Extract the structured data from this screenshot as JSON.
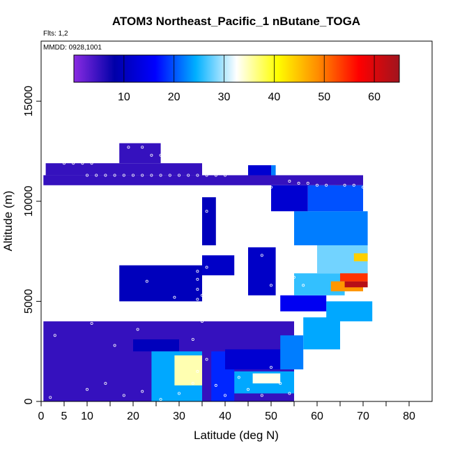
{
  "chart_data": {
    "type": "heatmap",
    "title": "ATOM3 Northeast_Pacific_1 nButane_TOGA",
    "annotations": [
      "Flts: 1,2",
      "MMDD: 0928,1001"
    ],
    "xlabel": "Latitude (deg N)",
    "ylabel": "Altitude (m)",
    "xlim": [
      0,
      85
    ],
    "ylim": [
      0,
      18000
    ],
    "x_ticks": [
      0,
      5,
      10,
      20,
      30,
      40,
      50,
      60,
      70,
      80
    ],
    "x_minor_ticks": [
      15,
      25,
      35,
      45,
      55,
      65,
      75
    ],
    "y_ticks": [
      0,
      5000,
      10000,
      15000
    ],
    "colorbar": {
      "range": [
        0,
        65
      ],
      "ticks": [
        10,
        20,
        30,
        40,
        50,
        60
      ],
      "colors": [
        "#8a2be2",
        "#0000a8",
        "#0000ff",
        "#00b0ff",
        "#ffffff",
        "#ffff00",
        "#ff8c00",
        "#ff0000",
        "#a0141e"
      ],
      "placement": "top-inside"
    },
    "background_value": 5,
    "cells": [
      {
        "lat": [
          0.5,
          55
        ],
        "alt": [
          0,
          4000
        ],
        "value": 5
      },
      {
        "lat": [
          20,
          30
        ],
        "alt": [
          2500,
          3100
        ],
        "value": 10
      },
      {
        "lat": [
          24,
          35
        ],
        "alt": [
          0,
          2500
        ],
        "value": 24
      },
      {
        "lat": [
          29,
          35
        ],
        "alt": [
          800,
          2300
        ],
        "value": 35
      },
      {
        "lat": [
          37,
          42
        ],
        "alt": [
          0,
          2500
        ],
        "value": 18
      },
      {
        "lat": [
          42,
          55
        ],
        "alt": [
          400,
          1500
        ],
        "value": 24
      },
      {
        "lat": [
          46,
          52
        ],
        "alt": [
          900,
          1400
        ],
        "value": 33
      },
      {
        "lat": [
          40,
          52
        ],
        "alt": [
          1600,
          2600
        ],
        "value": 12
      },
      {
        "lat": [
          52,
          57
        ],
        "alt": [
          1600,
          3300
        ],
        "value": 22
      },
      {
        "lat": [
          57,
          65
        ],
        "alt": [
          2600,
          4200
        ],
        "value": 24
      },
      {
        "lat": [
          62,
          72
        ],
        "alt": [
          4000,
          5000
        ],
        "value": 24
      },
      {
        "lat": [
          52,
          62
        ],
        "alt": [
          4500,
          5300
        ],
        "value": 15
      },
      {
        "lat": [
          55,
          66
        ],
        "alt": [
          5300,
          6400
        ],
        "value": 26
      },
      {
        "lat": [
          63,
          70
        ],
        "alt": [
          5500,
          6000
        ],
        "value": 48
      },
      {
        "lat": [
          66,
          71
        ],
        "alt": [
          5700,
          6000
        ],
        "value": 63
      },
      {
        "lat": [
          65,
          71
        ],
        "alt": [
          6000,
          6500
        ],
        "value": 54
      },
      {
        "lat": [
          60,
          71
        ],
        "alt": [
          6400,
          7800
        ],
        "value": 28
      },
      {
        "lat": [
          68,
          71
        ],
        "alt": [
          7000,
          7400
        ],
        "value": 44
      },
      {
        "lat": [
          55,
          71
        ],
        "alt": [
          7800,
          9500
        ],
        "value": 22
      },
      {
        "lat": [
          50,
          58
        ],
        "alt": [
          9500,
          10800
        ],
        "value": 12
      },
      {
        "lat": [
          58,
          70
        ],
        "alt": [
          9500,
          10800
        ],
        "value": 20
      },
      {
        "lat": [
          17,
          35
        ],
        "alt": [
          5000,
          6800
        ],
        "value": 10
      },
      {
        "lat": [
          35,
          42
        ],
        "alt": [
          6300,
          7300
        ],
        "value": 11
      },
      {
        "lat": [
          45,
          51
        ],
        "alt": [
          5300,
          7700
        ],
        "value": 11
      },
      {
        "lat": [
          35,
          38
        ],
        "alt": [
          7800,
          10200
        ],
        "value": 10
      },
      {
        "lat": [
          45,
          50
        ],
        "alt": [
          11000,
          11800
        ],
        "value": 12
      },
      {
        "lat": [
          50,
          51
        ],
        "alt": [
          11300,
          11800
        ],
        "value": 22
      },
      {
        "lat": [
          64,
          66
        ],
        "alt": [
          10800,
          11200
        ],
        "value": 44
      },
      {
        "lat": [
          0.5,
          70
        ],
        "alt": [
          10800,
          11300
        ],
        "value": 5
      },
      {
        "lat": [
          1,
          35
        ],
        "alt": [
          11300,
          11900
        ],
        "value": 5
      },
      {
        "lat": [
          17,
          26
        ],
        "alt": [
          11900,
          12900
        ],
        "value": 5
      }
    ],
    "sample_points": [
      [
        2,
        200
      ],
      [
        10,
        600
      ],
      [
        14,
        900
      ],
      [
        18,
        300
      ],
      [
        22,
        500
      ],
      [
        26,
        100
      ],
      [
        30,
        400
      ],
      [
        33,
        900
      ],
      [
        34,
        1500
      ],
      [
        36,
        2100
      ],
      [
        38,
        800
      ],
      [
        40,
        300
      ],
      [
        43,
        1200
      ],
      [
        45,
        600
      ],
      [
        48,
        300
      ],
      [
        50,
        1700
      ],
      [
        52,
        900
      ],
      [
        54,
        400
      ],
      [
        3,
        3300
      ],
      [
        7,
        4500
      ],
      [
        11,
        3900
      ],
      [
        16,
        2800
      ],
      [
        21,
        3600
      ],
      [
        25,
        4200
      ],
      [
        29,
        5200
      ],
      [
        33,
        3100
      ],
      [
        35,
        4000
      ],
      [
        35,
        4700
      ],
      [
        35,
        5300
      ],
      [
        38,
        4300
      ],
      [
        42,
        5400
      ],
      [
        46,
        4900
      ],
      [
        50,
        5800
      ],
      [
        55,
        6200
      ],
      [
        60,
        4300
      ],
      [
        4,
        6300
      ],
      [
        8,
        7100
      ],
      [
        13,
        6700
      ],
      [
        17,
        7400
      ],
      [
        23,
        6000
      ],
      [
        27,
        6900
      ],
      [
        32,
        7200
      ],
      [
        34,
        8000
      ],
      [
        36,
        6700
      ],
      [
        39,
        7500
      ],
      [
        44,
        8200
      ],
      [
        48,
        7300
      ],
      [
        52,
        6400
      ],
      [
        57,
        5800
      ],
      [
        2,
        8800
      ],
      [
        6,
        9300
      ],
      [
        9,
        8400
      ],
      [
        15,
        9600
      ],
      [
        19,
        8800
      ],
      [
        24,
        9300
      ],
      [
        29,
        9900
      ],
      [
        33,
        8600
      ],
      [
        34,
        9000
      ],
      [
        34,
        9600
      ],
      [
        36,
        9500
      ],
      [
        40,
        8900
      ],
      [
        43,
        9800
      ],
      [
        47,
        9300
      ],
      [
        52,
        8700
      ],
      [
        10,
        11300
      ],
      [
        12,
        11300
      ],
      [
        14,
        11300
      ],
      [
        16,
        11300
      ],
      [
        18,
        11300
      ],
      [
        20,
        11300
      ],
      [
        22,
        11300
      ],
      [
        24,
        11300
      ],
      [
        26,
        11300
      ],
      [
        28,
        11300
      ],
      [
        30,
        11300
      ],
      [
        32,
        11300
      ],
      [
        34,
        11300
      ],
      [
        36,
        11300
      ],
      [
        38,
        11300
      ],
      [
        40,
        11300
      ],
      [
        12,
        10700
      ],
      [
        14,
        10700
      ],
      [
        16,
        10700
      ],
      [
        18,
        10700
      ],
      [
        20,
        10700
      ],
      [
        22,
        10700
      ],
      [
        24,
        10700
      ],
      [
        26,
        10700
      ],
      [
        28,
        10700
      ],
      [
        30,
        10700
      ],
      [
        32,
        10700
      ],
      [
        36,
        10700
      ],
      [
        38,
        10700
      ],
      [
        40,
        10700
      ],
      [
        42,
        10700
      ],
      [
        44,
        10700
      ],
      [
        46,
        10700
      ],
      [
        48,
        10700
      ],
      [
        50,
        10700
      ],
      [
        34,
        10300
      ],
      [
        34,
        9800
      ],
      [
        34,
        10000
      ],
      [
        34,
        8300
      ],
      [
        34,
        7800
      ],
      [
        34,
        7500
      ],
      [
        34,
        6900
      ],
      [
        34,
        6500
      ],
      [
        34,
        6100
      ],
      [
        34,
        5600
      ],
      [
        34,
        5100
      ],
      [
        34,
        4600
      ],
      [
        34,
        4300
      ],
      [
        54,
        11000
      ],
      [
        56,
        10900
      ],
      [
        58,
        10900
      ],
      [
        60,
        10800
      ],
      [
        62,
        10800
      ],
      [
        66,
        10800
      ],
      [
        68,
        10800
      ],
      [
        70,
        10700
      ],
      [
        5,
        11900
      ],
      [
        7,
        11900
      ],
      [
        9,
        11900
      ],
      [
        11,
        11900
      ],
      [
        13,
        12300
      ],
      [
        16,
        12300
      ],
      [
        19,
        12700
      ],
      [
        22,
        12700
      ],
      [
        24,
        12300
      ],
      [
        26,
        12300
      ],
      [
        30,
        12300
      ],
      [
        34,
        12300
      ]
    ]
  }
}
